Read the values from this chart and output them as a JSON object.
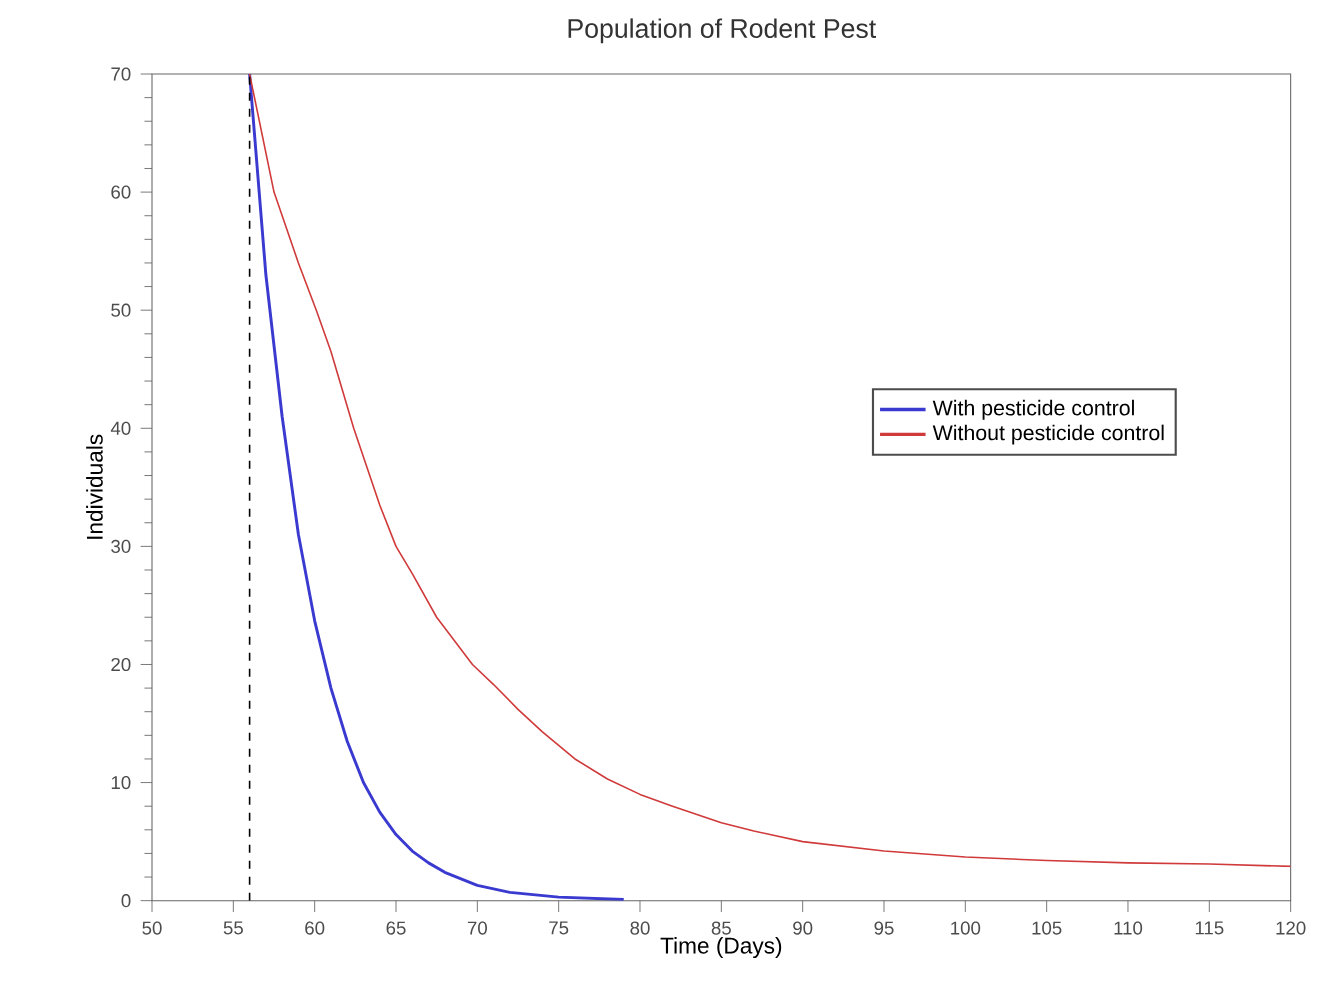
{
  "chart_data": {
    "type": "line",
    "title": "Population of Rodent Pest",
    "xlabel": "Time (Days)",
    "ylabel": "Individuals",
    "xlim": [
      50,
      120
    ],
    "ylim": [
      0,
      70
    ],
    "xticks": [
      50,
      55,
      60,
      65,
      70,
      75,
      80,
      85,
      90,
      95,
      100,
      105,
      110,
      115,
      120
    ],
    "yticks": [
      0,
      10,
      20,
      30,
      40,
      50,
      60,
      70
    ],
    "legend": "right",
    "grid": false,
    "line_style": "solid",
    "ref_lines": [
      {
        "axis": "x",
        "value": 56,
        "color": "#000000",
        "line_style": "dashed"
      }
    ],
    "series": [
      {
        "name": "With pesticide control",
        "color": "#3a3ad0",
        "x": [
          56,
          57,
          58,
          59,
          60,
          61,
          62,
          63,
          64,
          65,
          66,
          67,
          68,
          70,
          72,
          75,
          79
        ],
        "values": [
          70,
          53,
          41,
          31,
          23.7,
          18,
          13.5,
          10,
          7.5,
          5.6,
          4.2,
          3.2,
          2.4,
          1.3,
          0.7,
          0.3,
          0.1
        ]
      },
      {
        "name": "Without pesticide control",
        "color": "#d03a3a",
        "x": [
          56,
          57.5,
          59,
          60.1,
          61,
          62.4,
          64,
          65,
          66,
          67.5,
          69.7,
          71,
          72.5,
          74,
          76,
          78,
          80,
          82,
          85,
          87,
          90,
          95,
          100,
          105,
          110,
          115,
          120
        ],
        "values": [
          70,
          60,
          54,
          50,
          46.5,
          40,
          33.5,
          30,
          27.7,
          24,
          20,
          18.3,
          16.2,
          14.3,
          12,
          10.3,
          9,
          8,
          6.6,
          5.9,
          5,
          4.2,
          3.7,
          3.4,
          3.2,
          3.1,
          2.9
        ]
      }
    ]
  }
}
